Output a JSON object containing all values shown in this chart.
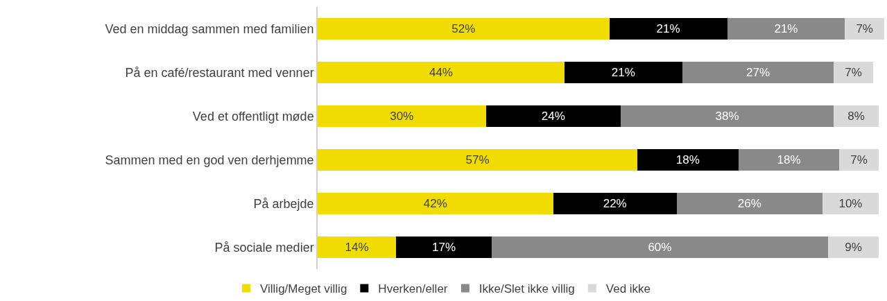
{
  "chart_data": {
    "type": "bar",
    "orientation": "horizontal",
    "stacked": true,
    "legend": "bottom",
    "tick_labels": "y",
    "xlim": [
      0,
      101
    ],
    "categories": [
      "Ved en middag sammen med familien",
      "På en café/restaurant med venner",
      "Ved et offentligt møde",
      "Sammen med en god ven derhjemme",
      "På arbejde",
      "På sociale medier"
    ],
    "series": [
      {
        "name": "Villig/Meget villig",
        "color": "#f0dc00",
        "values": [
          52,
          44,
          30,
          57,
          42,
          14
        ],
        "value_labels": [
          "52%",
          "44%",
          "30%",
          "57%",
          "42%",
          "14%"
        ]
      },
      {
        "name": "Hverken/eller",
        "color": "#000000",
        "values": [
          21,
          21,
          24,
          18,
          22,
          17
        ],
        "value_labels": [
          "21%",
          "21%",
          "24%",
          "18%",
          "22%",
          "17%"
        ]
      },
      {
        "name": "Ikke/Slet ikke villig",
        "color": "#898989",
        "values": [
          21,
          27,
          38,
          18,
          26,
          60
        ],
        "value_labels": [
          "21%",
          "27%",
          "38%",
          "18%",
          "26%",
          "60%"
        ]
      },
      {
        "name": "Ved ikke",
        "color": "#d9d9d9",
        "values": [
          7,
          7,
          8,
          7,
          10,
          9
        ],
        "value_labels": [
          "7%",
          "7%",
          "8%",
          "7%",
          "10%",
          "9%"
        ]
      }
    ]
  }
}
